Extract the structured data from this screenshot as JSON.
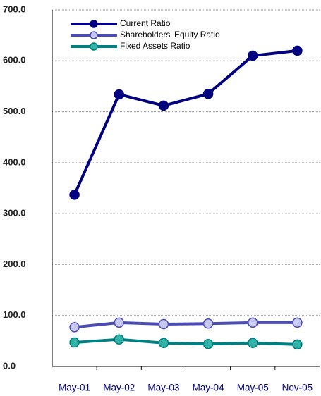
{
  "chart_data": {
    "type": "line",
    "categories": [
      "May-01",
      "May-02",
      "May-03",
      "May-04",
      "May-05",
      "Nov-05"
    ],
    "series": [
      {
        "name": "Current Ratio",
        "color": "#000080",
        "marker_fill": "#000080",
        "values": [
          337,
          534,
          512,
          535,
          610,
          620
        ]
      },
      {
        "name": "Shareholders' Equity Ratio",
        "color": "#4b4bb4",
        "marker_fill": "#c8c8f0",
        "values": [
          77,
          86,
          83,
          84,
          86,
          86
        ]
      },
      {
        "name": "Fixed Assets Ratio",
        "color": "#008080",
        "marker_fill": "#33b3a6",
        "values": [
          47,
          53,
          46,
          44,
          46,
          43
        ]
      }
    ],
    "ylim": [
      0,
      700
    ],
    "yticks": [
      {
        "value": 0,
        "label": "0.0"
      },
      {
        "value": 100,
        "label": "100.0"
      },
      {
        "value": 200,
        "label": "200.0"
      },
      {
        "value": 300,
        "label": "300.0"
      },
      {
        "value": 400,
        "label": "400.0"
      },
      {
        "value": 500,
        "label": "500.0"
      },
      {
        "value": 600,
        "label": "600.0"
      },
      {
        "value": 700,
        "label": "700.0"
      }
    ],
    "grid": true,
    "legend": "upper left"
  }
}
